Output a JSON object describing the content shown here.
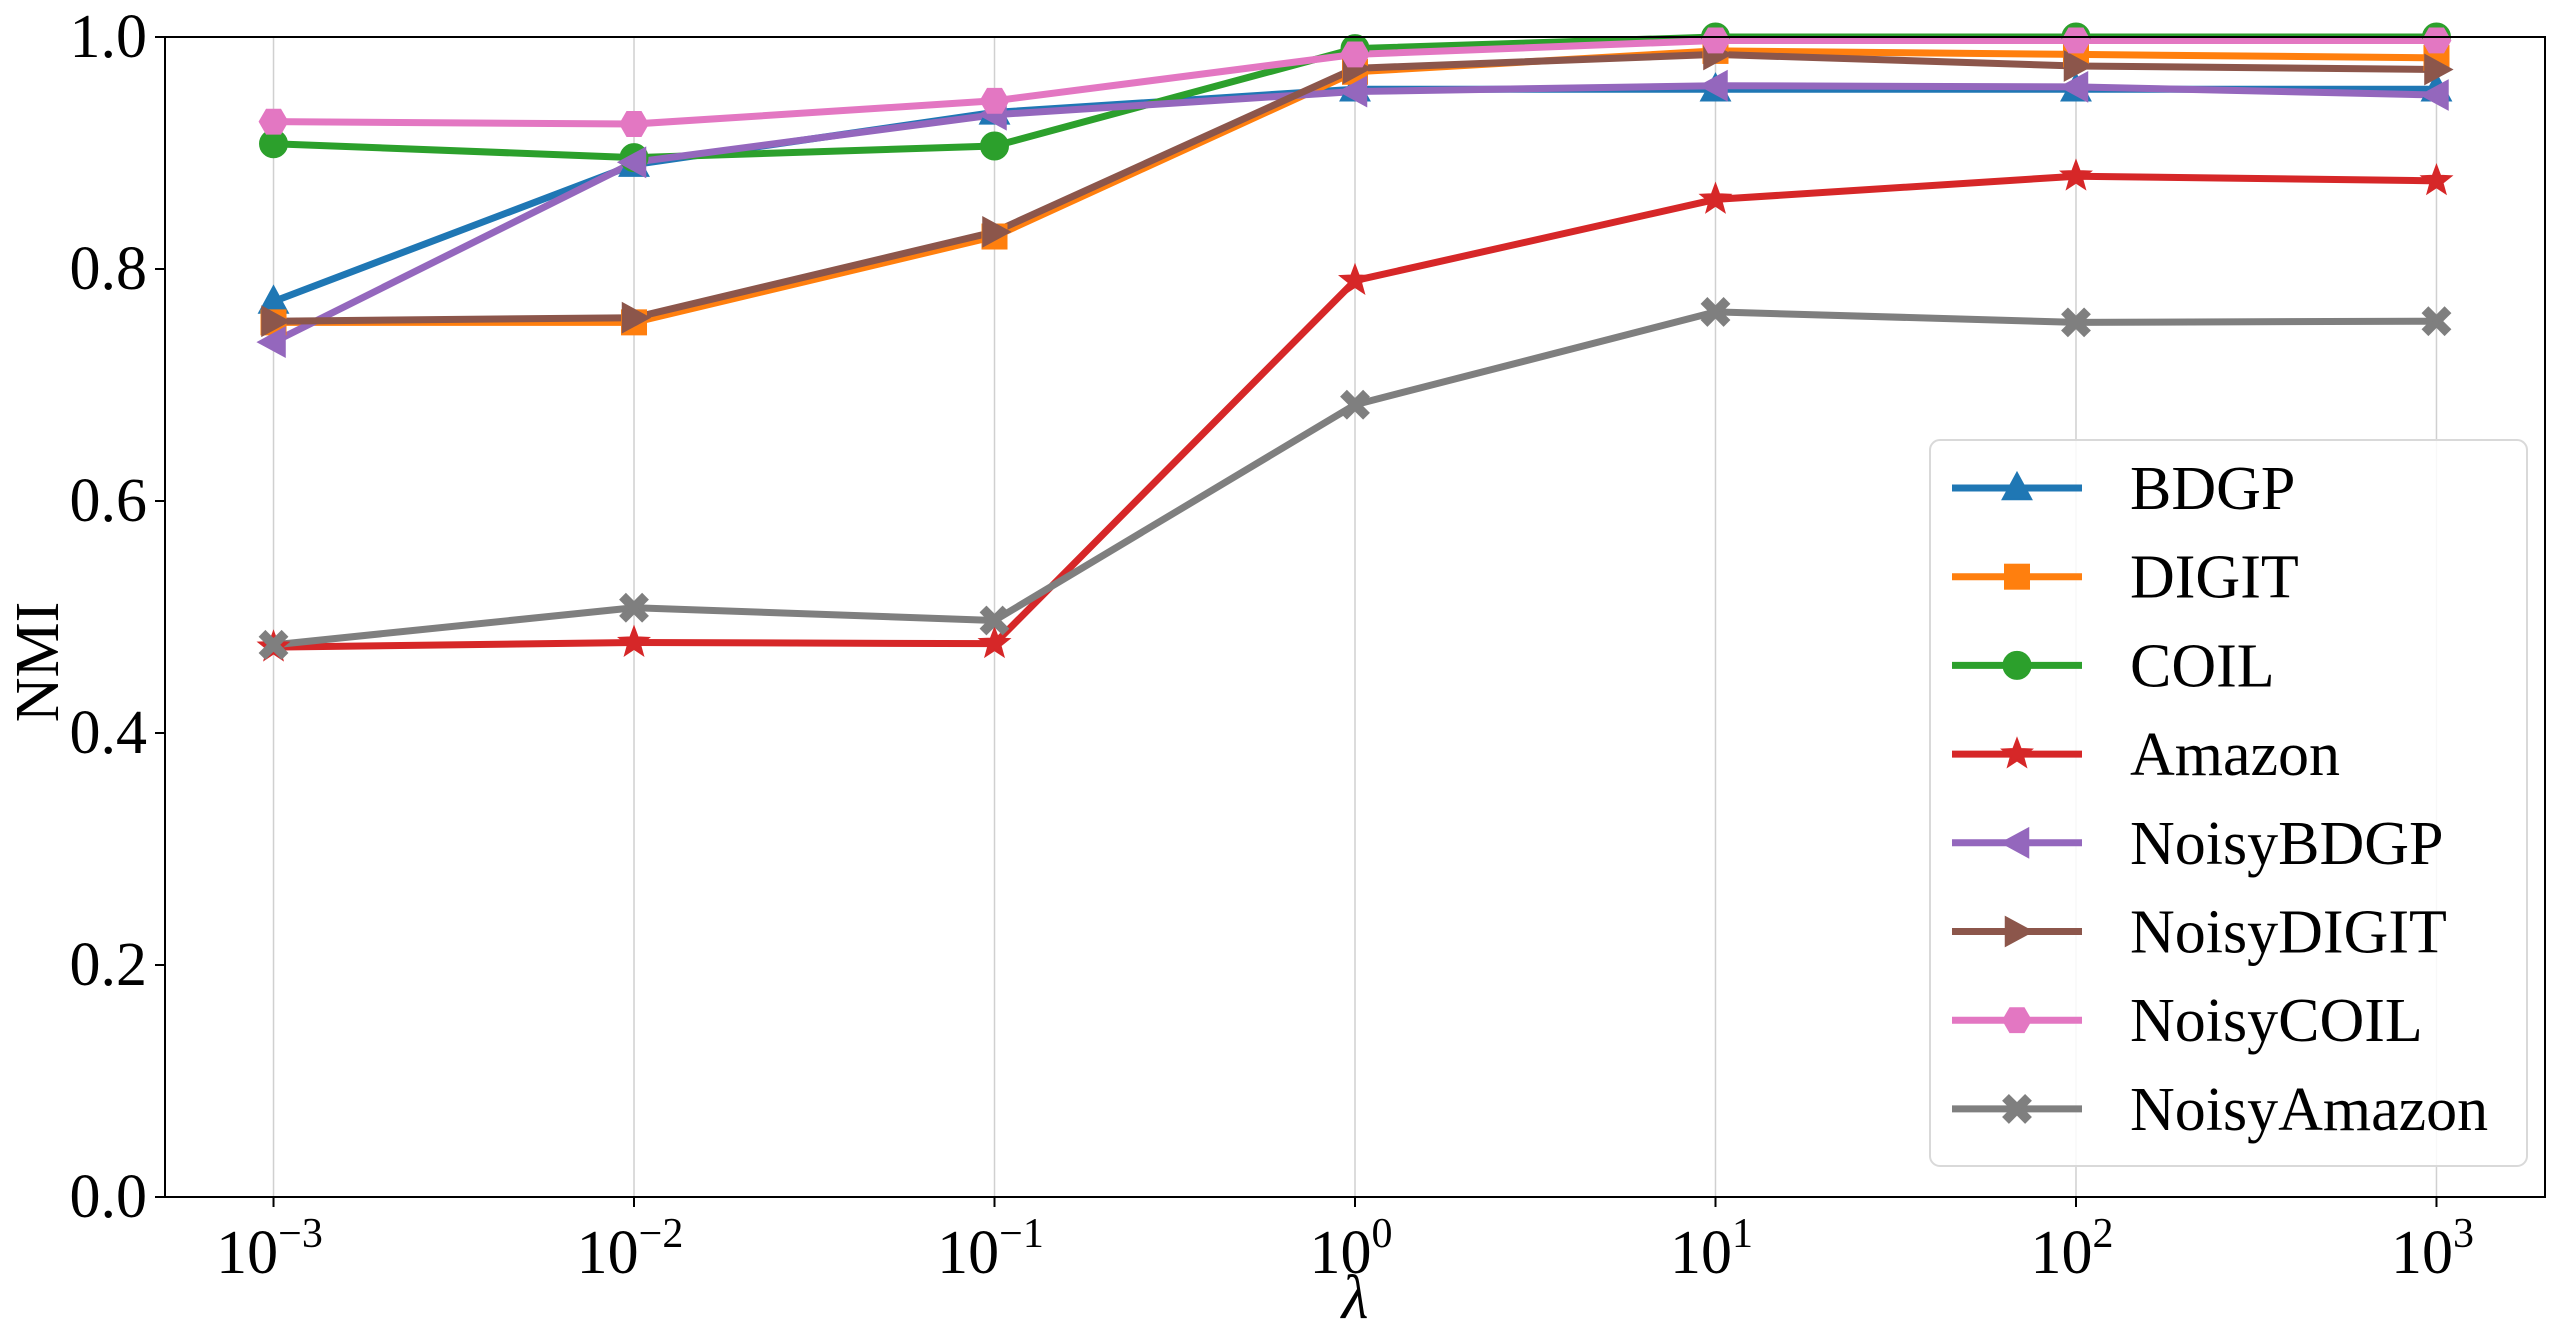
{
  "chart_data": {
    "type": "line",
    "title": "",
    "xlabel": "λ",
    "ylabel": "NMI",
    "xscale": "log",
    "x": [
      0.001,
      0.01,
      0.1,
      1,
      10,
      100,
      1000
    ],
    "x_tick_labels": [
      {
        "base": "10",
        "exp": "−3"
      },
      {
        "base": "10",
        "exp": "−2"
      },
      {
        "base": "10",
        "exp": "−1"
      },
      {
        "base": "10",
        "exp": "0"
      },
      {
        "base": "10",
        "exp": "1"
      },
      {
        "base": "10",
        "exp": "2"
      },
      {
        "base": "10",
        "exp": "3"
      }
    ],
    "xlim": [
      0.0005,
      2000
    ],
    "ylim": [
      0.0,
      1.0
    ],
    "y_ticks": [
      0.0,
      0.2,
      0.4,
      0.6,
      0.8,
      1.0
    ],
    "y_tick_labels": [
      "0.0",
      "0.2",
      "0.4",
      "0.6",
      "0.8",
      "1.0"
    ],
    "grid": "vertical",
    "legend_position": "lower-right",
    "series": [
      {
        "name": "BDGP",
        "color": "#1f77b4",
        "marker": "triangle-up",
        "values": [
          0.772,
          0.89,
          0.935,
          0.955,
          0.955,
          0.955,
          0.955
        ]
      },
      {
        "name": "DIGIT",
        "color": "#ff7f0e",
        "marker": "square",
        "values": [
          0.754,
          0.754,
          0.828,
          0.97,
          0.988,
          0.985,
          0.982
        ]
      },
      {
        "name": "COIL",
        "color": "#2ca02c",
        "marker": "circle",
        "values": [
          0.908,
          0.896,
          0.906,
          0.99,
          1.0,
          1.0,
          1.0
        ]
      },
      {
        "name": "Amazon",
        "color": "#d62728",
        "marker": "star",
        "values": [
          0.474,
          0.478,
          0.477,
          0.79,
          0.86,
          0.88,
          0.876
        ]
      },
      {
        "name": "NoisyBDGP",
        "color": "#9467bd",
        "marker": "triangle-left",
        "values": [
          0.737,
          0.892,
          0.933,
          0.953,
          0.958,
          0.957,
          0.95
        ]
      },
      {
        "name": "NoisyDIGIT",
        "color": "#8c564b",
        "marker": "triangle-right",
        "values": [
          0.755,
          0.758,
          0.832,
          0.973,
          0.985,
          0.975,
          0.972
        ]
      },
      {
        "name": "NoisyCOIL",
        "color": "#e377c2",
        "marker": "hexagon",
        "values": [
          0.927,
          0.925,
          0.945,
          0.985,
          0.997,
          0.997,
          0.997
        ]
      },
      {
        "name": "NoisyAmazon",
        "color": "#7f7f7f",
        "marker": "x-filled",
        "values": [
          0.476,
          0.508,
          0.497,
          0.683,
          0.763,
          0.754,
          0.755
        ]
      }
    ]
  }
}
